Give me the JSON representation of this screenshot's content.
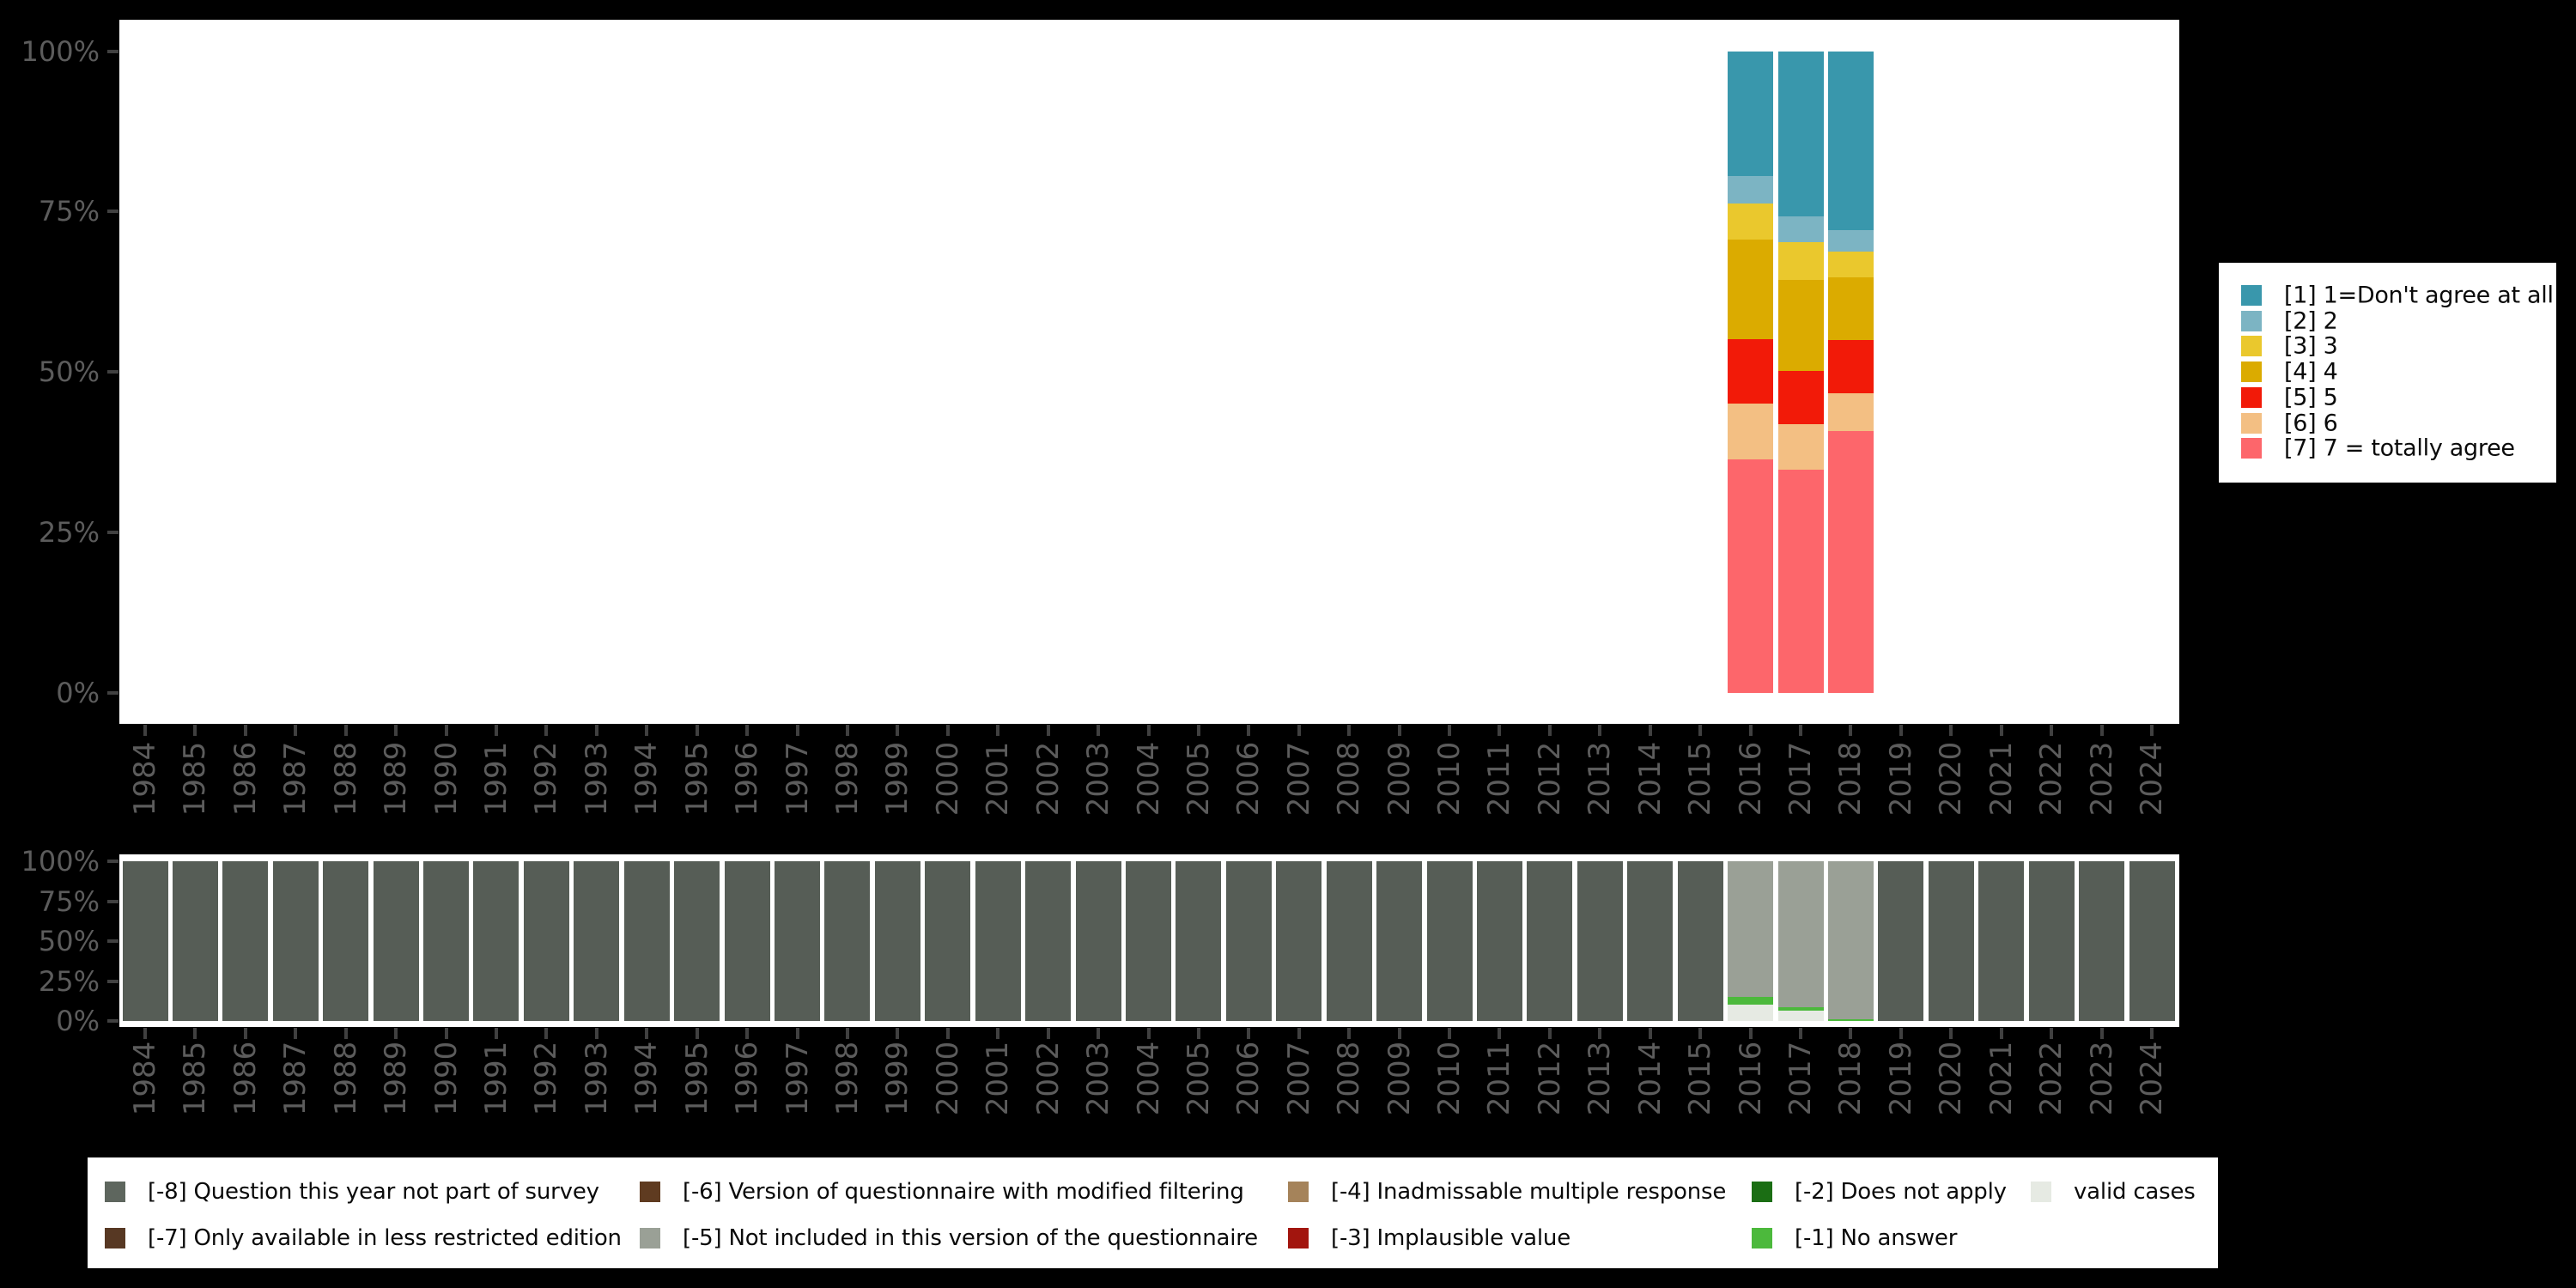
{
  "background_color": "#000000",
  "axis_style": {
    "label_color": "#5c5c5c",
    "tick_color": "#404040"
  },
  "chart_data": [
    {
      "id": "answer-distribution",
      "type": "bar",
      "stacked": true,
      "ylim": [
        0,
        100
      ],
      "ytick_labels": [
        "100%",
        "75%",
        "50%",
        "25%",
        "0%"
      ],
      "grid": false,
      "legend_position": "right",
      "categories": [
        "1984",
        "1985",
        "1986",
        "1987",
        "1988",
        "1989",
        "1990",
        "1991",
        "1992",
        "1993",
        "1994",
        "1995",
        "1996",
        "1997",
        "1998",
        "1999",
        "2000",
        "2001",
        "2002",
        "2003",
        "2004",
        "2005",
        "2006",
        "2007",
        "2008",
        "2009",
        "2010",
        "2011",
        "2012",
        "2013",
        "2014",
        "2015",
        "2016",
        "2017",
        "2018",
        "2019",
        "2020",
        "2021",
        "2022",
        "2023",
        "2024"
      ],
      "series": [
        {
          "label": "[1] 1=Don't agree at all",
          "color": "#3997ac",
          "data": {
            "2016": 19.5,
            "2017": 25.7,
            "2018": 27.9
          }
        },
        {
          "label": "[2] 2",
          "color": "#7cb4c3",
          "data": {
            "2016": 4.3,
            "2017": 4.1,
            "2018": 3.3
          }
        },
        {
          "label": "[3] 3",
          "color": "#eac82d",
          "data": {
            "2016": 5.6,
            "2017": 5.9,
            "2018": 4.1
          }
        },
        {
          "label": "[4] 4",
          "color": "#dbab00",
          "data": {
            "2016": 15.5,
            "2017": 14.1,
            "2018": 9.7
          }
        },
        {
          "label": "[5] 5",
          "color": "#f21a08",
          "data": {
            "2016": 10.0,
            "2017": 8.3,
            "2018": 8.3
          }
        },
        {
          "label": "[6] 6",
          "color": "#f3bf83",
          "data": {
            "2016": 8.8,
            "2017": 7.1,
            "2018": 5.9
          }
        },
        {
          "label": "[7] 7 = totally agree",
          "color": "#fd666b",
          "data": {
            "2016": 36.3,
            "2017": 34.8,
            "2018": 40.8
          }
        }
      ]
    },
    {
      "id": "missing-values",
      "type": "bar",
      "stacked": true,
      "ylim": [
        0,
        100
      ],
      "ytick_labels": [
        "100%",
        "75%",
        "50%",
        "25%",
        "0%"
      ],
      "grid": false,
      "legend_position": "bottom",
      "categories": [
        "1984",
        "1985",
        "1986",
        "1987",
        "1988",
        "1989",
        "1990",
        "1991",
        "1992",
        "1993",
        "1994",
        "1995",
        "1996",
        "1997",
        "1998",
        "1999",
        "2000",
        "2001",
        "2002",
        "2003",
        "2004",
        "2005",
        "2006",
        "2007",
        "2008",
        "2009",
        "2010",
        "2011",
        "2012",
        "2013",
        "2014",
        "2015",
        "2016",
        "2017",
        "2018",
        "2019",
        "2020",
        "2021",
        "2022",
        "2023",
        "2024"
      ],
      "series": [
        {
          "label": "[-8] Question this year not part of survey",
          "color": "#565d56",
          "default": 100,
          "data": {
            "2016": 0,
            "2017": 0,
            "2018": 0
          }
        },
        {
          "label": "[-5] Not included in this version of the questionnaire",
          "color": "#9aa096",
          "default": 0,
          "data": {
            "2016": 84.8,
            "2017": 91.0,
            "2018": 98.5
          }
        },
        {
          "label": "[-1] No answer",
          "color": "#4cb93c",
          "default": 0,
          "data": {
            "2016": 4.9,
            "2017": 2.2,
            "2018": 1.5
          }
        },
        {
          "label": "valid cases",
          "color": "#e6eae3",
          "default": 0,
          "data": {
            "2016": 10.3,
            "2017": 6.8,
            "2018": 0
          }
        }
      ]
    }
  ],
  "top_legend": {
    "items": [
      {
        "label": "[1] 1=Don't agree at all",
        "color": "#3997ac"
      },
      {
        "label": "[2] 2",
        "color": "#7cb4c3"
      },
      {
        "label": "[3] 3",
        "color": "#eac82d"
      },
      {
        "label": "[4] 4",
        "color": "#dbab00"
      },
      {
        "label": "[5] 5",
        "color": "#f21a08"
      },
      {
        "label": "[6] 6",
        "color": "#f3bf83"
      },
      {
        "label": "[7] 7 = totally agree",
        "color": "#fd666b"
      }
    ]
  },
  "bottom_legend": {
    "columns": [
      {
        "items": [
          {
            "label": "[-8] Question this year not part of survey",
            "color": "#5e665e"
          },
          {
            "label": "[-7] Only available in less restricted edition",
            "color": "#573823"
          }
        ]
      },
      {
        "items": [
          {
            "label": "[-6] Version of questionnaire with modified filtering",
            "color": "#5f3b20"
          },
          {
            "label": "[-5] Not included in this version of the questionnaire",
            "color": "#9aa096"
          }
        ]
      },
      {
        "items": [
          {
            "label": "[-4] Inadmissable multiple response",
            "color": "#a5835a"
          },
          {
            "label": "[-3] Implausible value",
            "color": "#a2150e"
          }
        ]
      },
      {
        "items": [
          {
            "label": "[-2] Does not apply",
            "color": "#1b6e14"
          },
          {
            "label": "[-1] No answer",
            "color": "#4cb93c"
          }
        ]
      },
      {
        "items": [
          {
            "label": "valid cases",
            "color": "#e6eae3"
          }
        ]
      }
    ]
  }
}
